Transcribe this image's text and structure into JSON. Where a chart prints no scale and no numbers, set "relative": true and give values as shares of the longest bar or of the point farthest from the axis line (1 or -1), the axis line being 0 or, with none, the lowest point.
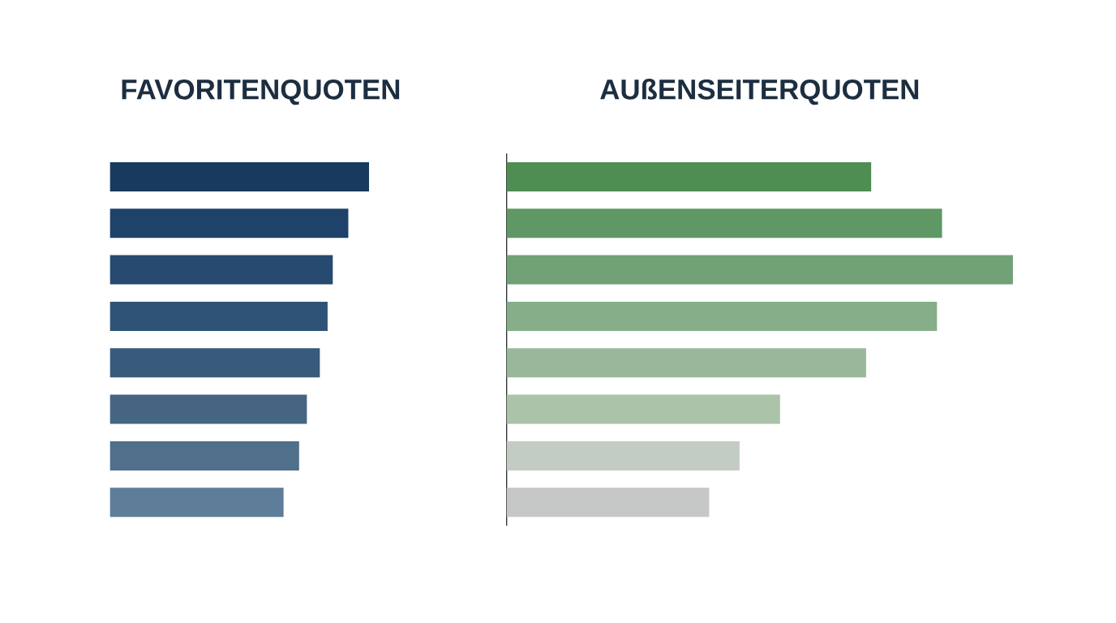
{
  "chart_data": [
    {
      "type": "bar",
      "orientation": "horizontal",
      "relative": true,
      "title": "FAVORITENQUOTEN",
      "categories": [
        null,
        null,
        null,
        null,
        null,
        null,
        null,
        null
      ],
      "values": [
        1,
        0.92,
        0.86,
        0.84,
        0.81,
        0.76,
        0.73,
        0.67
      ],
      "colors": [
        "#173a5e",
        "#1e4269",
        "#264a70",
        "#2e5377",
        "#385b7c",
        "#456583",
        "#4f6f8b",
        "#5d7d99"
      ]
    },
    {
      "type": "bar",
      "orientation": "horizontal",
      "relative": true,
      "title": "AUßENSEITERQUOTEN",
      "categories": [
        null,
        null,
        null,
        null,
        null,
        null,
        null,
        null
      ],
      "values": [
        0.72,
        0.86,
        1,
        0.85,
        0.71,
        0.54,
        0.46,
        0.4
      ],
      "colors": [
        "#4e8e53",
        "#5f9865",
        "#71a176",
        "#86ae89",
        "#99b89b",
        "#aac3a9",
        "#c2ccc5",
        "#c6c8c7"
      ]
    }
  ]
}
